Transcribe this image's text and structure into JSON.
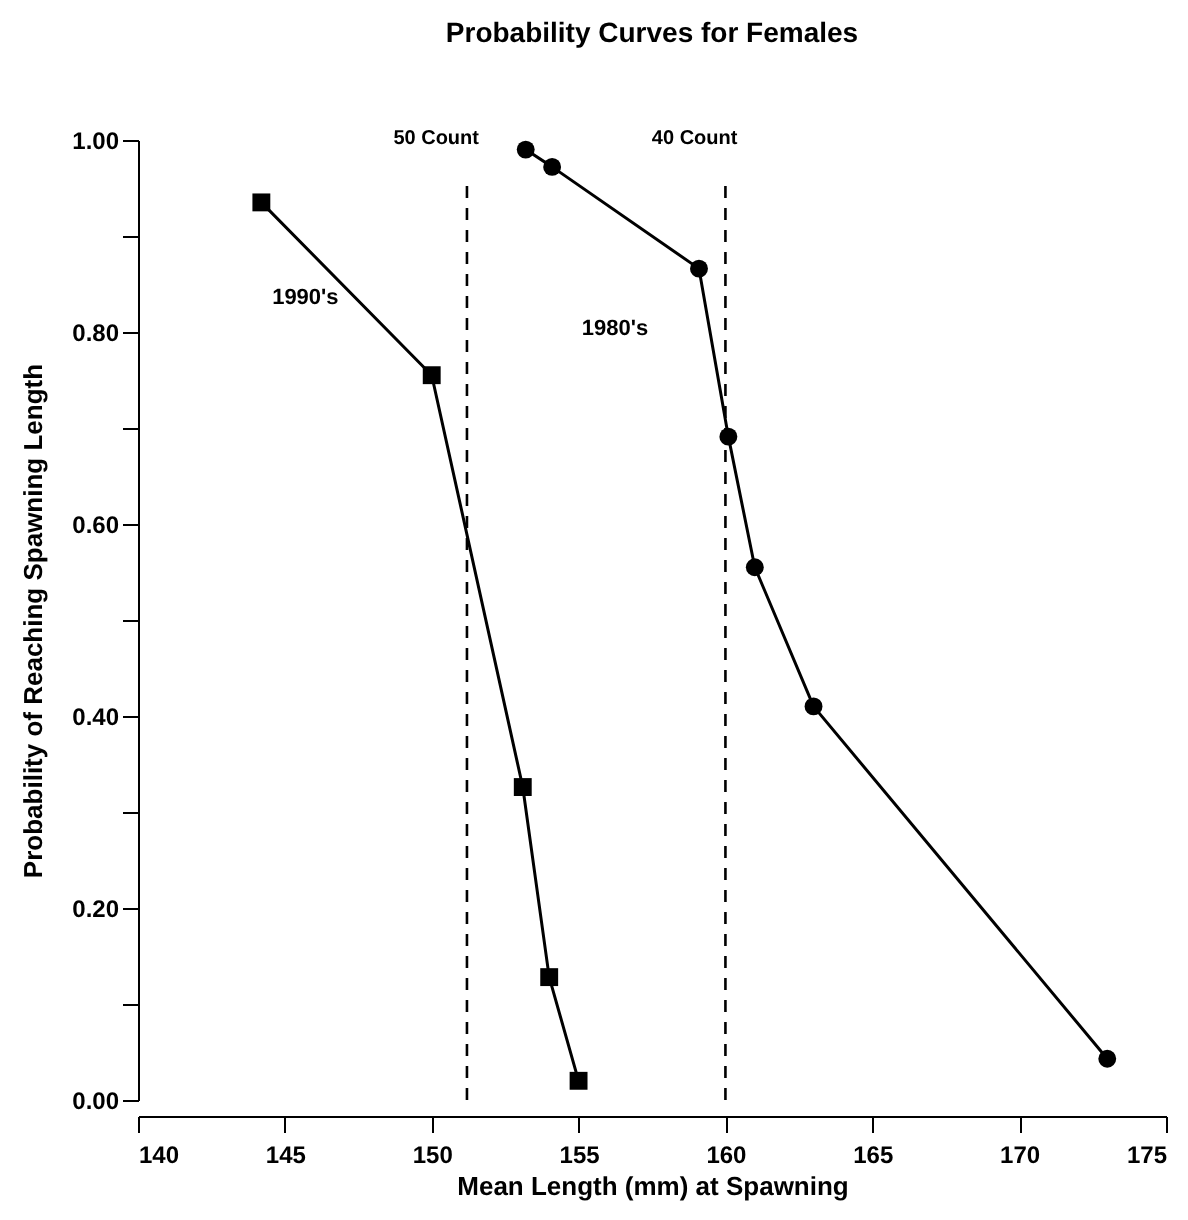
{
  "chart_data": {
    "type": "line",
    "title": "Probability Curves for Females",
    "xlabel": "Mean Length (mm) at Spawning",
    "ylabel": "Probability of Reaching Spawning Length",
    "series": [
      {
        "name": "1990's",
        "color": "#000000",
        "marker": "square",
        "x": [
          144.2,
          150,
          153.1,
          154,
          155
        ],
        "values": [
          0.935,
          0.755,
          0.326,
          0.128,
          0.02
        ]
      },
      {
        "name": "1980's",
        "color": "#000000",
        "marker": "circle",
        "x": [
          153.2,
          154.1,
          159.1,
          160.1,
          161,
          163,
          173
        ],
        "values": [
          0.99,
          0.972,
          0.866,
          0.691,
          0.555,
          0.41,
          0.043
        ]
      }
    ],
    "ref_lines": [
      {
        "axis": "x",
        "value": 151.2,
        "label": "50 Count",
        "line_style": "dashed",
        "color": "#000000"
      },
      {
        "axis": "x",
        "value": 160,
        "label": "40 Count",
        "line_style": "dashed",
        "color": "#000000"
      }
    ],
    "xlim": [
      140,
      175
    ],
    "xticks": [
      140,
      145,
      150,
      155,
      160,
      165,
      170,
      175
    ],
    "ylim": [
      0,
      1
    ],
    "yticks": [
      {
        "value": 0,
        "label": "0.00"
      },
      {
        "value": 0.1,
        "label": null
      },
      {
        "value": 0.2,
        "label": "0.20"
      },
      {
        "value": 0.3,
        "label": null
      },
      {
        "value": 0.4,
        "label": "0.40"
      },
      {
        "value": 0.5,
        "label": null
      },
      {
        "value": 0.6,
        "label": "0.60"
      },
      {
        "value": 0.7,
        "label": null
      },
      {
        "value": 0.8,
        "label": "0.80"
      },
      {
        "value": 0.9,
        "label": null
      },
      {
        "value": 1,
        "label": "1.00"
      }
    ],
    "grid": false,
    "line_style": "solid"
  }
}
